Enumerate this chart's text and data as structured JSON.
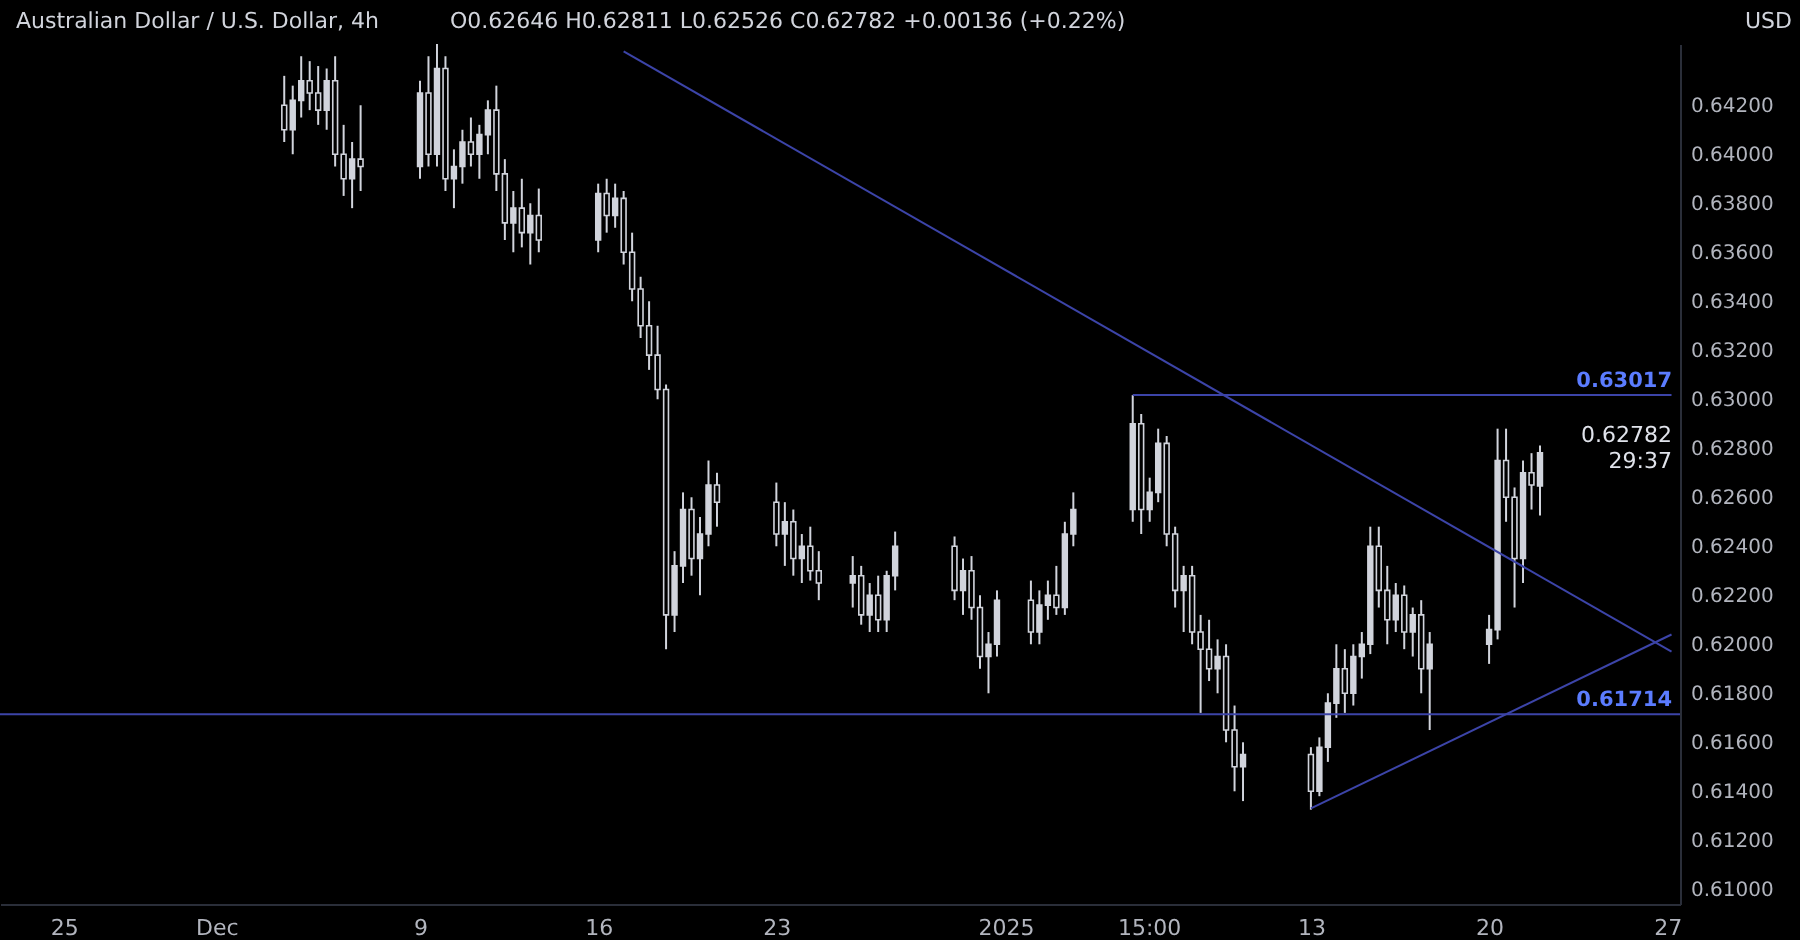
{
  "chart_data": {
    "type": "candlestick",
    "title": "Australian Dollar / U.S. Dollar, 4h",
    "color": "#d1d4dc",
    "grid": false,
    "x": [
      "2024-12-03T16:00",
      "2024-12-04T00:00",
      "2024-12-04T08:00",
      "2024-12-04T16:00",
      "2024-12-05T00:00",
      "2024-12-05T08:00",
      "2024-12-05T16:00",
      "2024-12-06T00:00",
      "2024-12-06T08:00",
      "2024-12-06T16:00",
      "2024-12-09T00:00",
      "2024-12-09T08:00",
      "2024-12-09T16:00",
      "2024-12-10T00:00",
      "2024-12-10T08:00",
      "2024-12-10T16:00",
      "2024-12-11T00:00",
      "2024-12-11T08:00",
      "2024-12-11T16:00",
      "2024-12-12T00:00",
      "2024-12-12T08:00",
      "2024-12-12T16:00",
      "2024-12-13T00:00",
      "2024-12-13T08:00",
      "2024-12-13T16:00",
      "2024-12-16T00:00",
      "2024-12-16T08:00",
      "2024-12-16T16:00",
      "2024-12-17T00:00",
      "2024-12-17T08:00",
      "2024-12-17T16:00",
      "2024-12-18T00:00",
      "2024-12-18T08:00",
      "2024-12-18T16:00",
      "2024-12-19T00:00",
      "2024-12-19T08:00",
      "2024-12-19T16:00",
      "2024-12-20T00:00",
      "2024-12-20T08:00",
      "2024-12-20T16:00",
      "2024-12-23T00:00",
      "2024-12-23T08:00",
      "2024-12-23T16:00",
      "2024-12-24T00:00",
      "2024-12-24T08:00",
      "2024-12-24T16:00",
      "2024-12-26T00:00",
      "2024-12-26T08:00",
      "2024-12-26T16:00",
      "2024-12-27T00:00",
      "2024-12-27T08:00",
      "2024-12-27T16:00",
      "2024-12-30T00:00",
      "2024-12-30T08:00",
      "2024-12-30T16:00",
      "2024-12-31T00:00",
      "2024-12-31T08:00",
      "2024-12-31T16:00",
      "2025-01-02T00:00",
      "2025-01-02T08:00",
      "2025-01-02T16:00",
      "2025-01-03T00:00",
      "2025-01-03T08:00",
      "2025-01-03T16:00",
      "2025-01-06T00:00",
      "2025-01-06T08:00",
      "2025-01-06T16:00",
      "2025-01-07T00:00",
      "2025-01-07T08:00",
      "2025-01-07T16:00",
      "2025-01-08T00:00",
      "2025-01-08T08:00",
      "2025-01-08T16:00",
      "2025-01-09T00:00",
      "2025-01-09T08:00",
      "2025-01-09T16:00",
      "2025-01-10T00:00",
      "2025-01-10T08:00",
      "2025-01-13T00:00",
      "2025-01-13T08:00",
      "2025-01-13T16:00",
      "2025-01-14T00:00",
      "2025-01-14T08:00",
      "2025-01-14T16:00",
      "2025-01-15T00:00",
      "2025-01-15T08:00",
      "2025-01-15T16:00",
      "2025-01-16T00:00",
      "2025-01-16T08:00",
      "2025-01-16T16:00",
      "2025-01-17T00:00",
      "2025-01-17T08:00",
      "2025-01-17T16:00",
      "2025-01-20T00:00",
      "2025-01-20T08:00",
      "2025-01-20T16:00",
      "2025-01-21T00:00",
      "2025-01-21T08:00",
      "2025-01-21T16:00",
      "2025-01-22T00:00"
    ],
    "ohlc": [
      [
        0.642,
        0.6432,
        0.6405,
        0.641
      ],
      [
        0.641,
        0.6428,
        0.64,
        0.6422
      ],
      [
        0.6422,
        0.644,
        0.6415,
        0.643
      ],
      [
        0.643,
        0.6438,
        0.6418,
        0.6425
      ],
      [
        0.6425,
        0.6436,
        0.6412,
        0.6418
      ],
      [
        0.6418,
        0.6435,
        0.641,
        0.643
      ],
      [
        0.643,
        0.644,
        0.6395,
        0.64
      ],
      [
        0.64,
        0.6412,
        0.6383,
        0.639
      ],
      [
        0.639,
        0.6405,
        0.6378,
        0.6398
      ],
      [
        0.6398,
        0.642,
        0.6385,
        0.6395
      ],
      [
        0.6395,
        0.643,
        0.639,
        0.6425
      ],
      [
        0.6425,
        0.644,
        0.6395,
        0.64
      ],
      [
        0.64,
        0.6445,
        0.6395,
        0.6435
      ],
      [
        0.6435,
        0.644,
        0.6385,
        0.639
      ],
      [
        0.639,
        0.6402,
        0.6378,
        0.6395
      ],
      [
        0.6395,
        0.641,
        0.6388,
        0.6405
      ],
      [
        0.6405,
        0.6415,
        0.6395,
        0.64
      ],
      [
        0.64,
        0.6412,
        0.639,
        0.6408
      ],
      [
        0.6408,
        0.6422,
        0.64,
        0.6418
      ],
      [
        0.6418,
        0.6428,
        0.6385,
        0.6392
      ],
      [
        0.6392,
        0.6398,
        0.6365,
        0.6372
      ],
      [
        0.6372,
        0.6385,
        0.636,
        0.6378
      ],
      [
        0.6378,
        0.639,
        0.6362,
        0.6368
      ],
      [
        0.6368,
        0.638,
        0.6355,
        0.6375
      ],
      [
        0.6375,
        0.6386,
        0.636,
        0.6365
      ],
      [
        0.6365,
        0.6388,
        0.636,
        0.6384
      ],
      [
        0.6384,
        0.639,
        0.6368,
        0.6375
      ],
      [
        0.6375,
        0.6388,
        0.637,
        0.6382
      ],
      [
        0.6382,
        0.6385,
        0.6355,
        0.636
      ],
      [
        0.636,
        0.6368,
        0.634,
        0.6345
      ],
      [
        0.6345,
        0.635,
        0.6325,
        0.633
      ],
      [
        0.633,
        0.634,
        0.6312,
        0.6318
      ],
      [
        0.6318,
        0.633,
        0.63,
        0.6304
      ],
      [
        0.6304,
        0.6306,
        0.6198,
        0.6212
      ],
      [
        0.6212,
        0.6238,
        0.6205,
        0.6232
      ],
      [
        0.6232,
        0.6262,
        0.6225,
        0.6255
      ],
      [
        0.6255,
        0.626,
        0.6228,
        0.6235
      ],
      [
        0.6235,
        0.6252,
        0.622,
        0.6245
      ],
      [
        0.6245,
        0.6275,
        0.624,
        0.6265
      ],
      [
        0.6265,
        0.627,
        0.6248,
        0.6258
      ],
      [
        0.6258,
        0.6266,
        0.624,
        0.6245
      ],
      [
        0.6245,
        0.6258,
        0.6232,
        0.625
      ],
      [
        0.625,
        0.6255,
        0.6228,
        0.6235
      ],
      [
        0.6235,
        0.6245,
        0.6225,
        0.624
      ],
      [
        0.624,
        0.6248,
        0.6226,
        0.623
      ],
      [
        0.623,
        0.6238,
        0.6218,
        0.6225
      ],
      [
        0.6225,
        0.6236,
        0.6215,
        0.6228
      ],
      [
        0.6228,
        0.6232,
        0.6208,
        0.6212
      ],
      [
        0.6212,
        0.6225,
        0.6205,
        0.622
      ],
      [
        0.622,
        0.6228,
        0.6205,
        0.621
      ],
      [
        0.621,
        0.623,
        0.6205,
        0.6228
      ],
      [
        0.6228,
        0.6246,
        0.6222,
        0.624
      ],
      [
        0.624,
        0.6244,
        0.6218,
        0.6222
      ],
      [
        0.6222,
        0.6235,
        0.6212,
        0.623
      ],
      [
        0.623,
        0.6236,
        0.621,
        0.6215
      ],
      [
        0.6215,
        0.622,
        0.619,
        0.6195
      ],
      [
        0.6195,
        0.6205,
        0.618,
        0.62
      ],
      [
        0.62,
        0.6222,
        0.6195,
        0.6218
      ],
      [
        0.6218,
        0.6226,
        0.62,
        0.6205
      ],
      [
        0.6205,
        0.6222,
        0.62,
        0.6216
      ],
      [
        0.6216,
        0.6226,
        0.621,
        0.622
      ],
      [
        0.622,
        0.6232,
        0.6212,
        0.6215
      ],
      [
        0.6215,
        0.625,
        0.6212,
        0.6245
      ],
      [
        0.6245,
        0.6262,
        0.624,
        0.6255
      ],
      [
        0.6255,
        0.63017,
        0.625,
        0.629
      ],
      [
        0.629,
        0.6294,
        0.6245,
        0.6255
      ],
      [
        0.6255,
        0.6268,
        0.625,
        0.6262
      ],
      [
        0.6262,
        0.6288,
        0.6258,
        0.6282
      ],
      [
        0.6282,
        0.6285,
        0.624,
        0.6245
      ],
      [
        0.6245,
        0.6248,
        0.6215,
        0.6222
      ],
      [
        0.6222,
        0.6232,
        0.6205,
        0.6228
      ],
      [
        0.6228,
        0.6232,
        0.62,
        0.6205
      ],
      [
        0.6205,
        0.6212,
        0.6172,
        0.6198
      ],
      [
        0.6198,
        0.621,
        0.6185,
        0.619
      ],
      [
        0.619,
        0.6202,
        0.618,
        0.6195
      ],
      [
        0.6195,
        0.62,
        0.616,
        0.6165
      ],
      [
        0.6165,
        0.6175,
        0.614,
        0.615
      ],
      [
        0.615,
        0.616,
        0.6136,
        0.6155
      ],
      [
        0.6155,
        0.6158,
        0.61325,
        0.614
      ],
      [
        0.614,
        0.6162,
        0.6138,
        0.6158
      ],
      [
        0.6158,
        0.618,
        0.6152,
        0.6176
      ],
      [
        0.6176,
        0.62,
        0.617,
        0.619
      ],
      [
        0.619,
        0.6198,
        0.6172,
        0.618
      ],
      [
        0.618,
        0.62,
        0.6175,
        0.6195
      ],
      [
        0.6195,
        0.6205,
        0.6186,
        0.62
      ],
      [
        0.62,
        0.6248,
        0.6196,
        0.624
      ],
      [
        0.624,
        0.6248,
        0.6215,
        0.6222
      ],
      [
        0.6222,
        0.6232,
        0.62,
        0.621
      ],
      [
        0.621,
        0.6225,
        0.6205,
        0.622
      ],
      [
        0.622,
        0.6224,
        0.6198,
        0.6205
      ],
      [
        0.6205,
        0.6215,
        0.6195,
        0.6212
      ],
      [
        0.6212,
        0.6218,
        0.618,
        0.619
      ],
      [
        0.619,
        0.6205,
        0.6165,
        0.62
      ],
      [
        0.62,
        0.6212,
        0.6192,
        0.6206
      ],
      [
        0.6206,
        0.6288,
        0.6202,
        0.6275
      ],
      [
        0.6275,
        0.6288,
        0.625,
        0.626
      ],
      [
        0.626,
        0.6264,
        0.6215,
        0.6235
      ],
      [
        0.6235,
        0.6275,
        0.6225,
        0.627
      ],
      [
        0.627,
        0.6278,
        0.6255,
        0.6265
      ],
      [
        0.62646,
        0.62811,
        0.62526,
        0.62782
      ]
    ],
    "series": [
      {
        "type": "line",
        "color": "#3c44a8",
        "x": [
          "2024-12-17T00:00",
          "2025-01-27T04:00"
        ],
        "values": [
          0.6442,
          0.6197
        ]
      },
      {
        "type": "line",
        "color": "#3c44a8",
        "x": [
          "2025-01-13T00:00",
          "2025-01-27T04:00"
        ],
        "values": [
          0.6133,
          0.6204
        ]
      },
      {
        "type": "line",
        "color": "#3c44a8",
        "x": [
          "2025-01-06T00:00",
          "2025-01-27T04:00"
        ],
        "values": [
          0.63017,
          0.63017
        ]
      }
    ],
    "ref_lines": [
      {
        "axis": "y",
        "value": 0.61714,
        "label": "0.61714",
        "color": "#3c44a8"
      }
    ],
    "annotations": [
      "O0.62646 H0.62811 L0.62526 C0.62782 +0.00136 (+0.22%)",
      {
        "text": "0.63017",
        "x": "2025-01-27T12:00",
        "y": 0.63017
      },
      "0.62782\n29:37",
      "USD"
    ],
    "xlim": [
      "2024-11-22T12:00",
      "2025-01-27T12:00"
    ],
    "ylim": [
      0.6094,
      0.6445
    ],
    "xticks": [
      {
        "value": "2024-11-25",
        "label": "25"
      },
      {
        "value": "2024-12-01",
        "label": "Dec"
      },
      {
        "value": "2024-12-09",
        "label": "9"
      },
      {
        "value": "2024-12-16",
        "label": "16"
      },
      {
        "value": "2024-12-23",
        "label": "23"
      },
      {
        "value": "2025-01-01",
        "label": "2025"
      },
      {
        "value": "2025-01-06T15:00",
        "label": "15:00"
      },
      {
        "value": "2025-01-13",
        "label": "13"
      },
      {
        "value": "2025-01-20",
        "label": "20"
      },
      {
        "value": "2025-01-27",
        "label": "27"
      }
    ],
    "yticks": [
      {
        "value": 0.61,
        "label": "0.61000"
      },
      {
        "value": 0.612,
        "label": "0.61200"
      },
      {
        "value": 0.614,
        "label": "0.61400"
      },
      {
        "value": 0.616,
        "label": "0.61600"
      },
      {
        "value": 0.618,
        "label": "0.61800"
      },
      {
        "value": 0.62,
        "label": "0.62000"
      },
      {
        "value": 0.622,
        "label": "0.62200"
      },
      {
        "value": 0.624,
        "label": "0.62400"
      },
      {
        "value": 0.626,
        "label": "0.62600"
      },
      {
        "value": 0.628,
        "label": "0.62800"
      },
      {
        "value": 0.63,
        "label": "0.63000"
      },
      {
        "value": 0.632,
        "label": "0.63200"
      },
      {
        "value": 0.634,
        "label": "0.63400"
      },
      {
        "value": 0.636,
        "label": "0.63600"
      },
      {
        "value": 0.638,
        "label": "0.63800"
      },
      {
        "value": 0.64,
        "label": "0.64000"
      },
      {
        "value": 0.642,
        "label": "0.64200"
      }
    ]
  }
}
